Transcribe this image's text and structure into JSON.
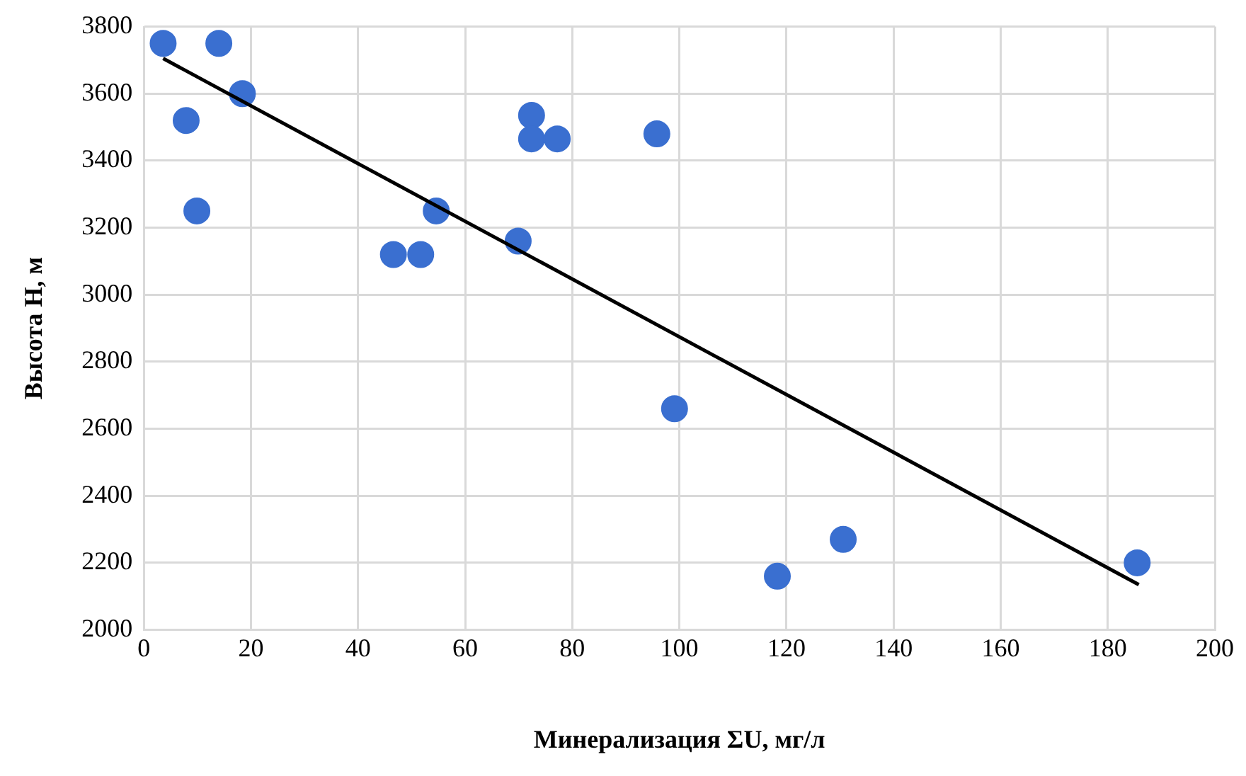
{
  "chart_data": {
    "type": "scatter",
    "xlabel": "Минерализация ΣU, мг/л",
    "ylabel": "Высота Н, м",
    "xlim": [
      0,
      200
    ],
    "xticks": [
      0,
      20,
      40,
      60,
      80,
      100,
      120,
      140,
      160,
      180,
      200
    ],
    "ylim": [
      2000,
      3800
    ],
    "yticks": [
      2000,
      2200,
      2400,
      2600,
      2800,
      3000,
      3200,
      3400,
      3600,
      3800
    ],
    "grid": true,
    "series": [
      {
        "color": "#3a6fd0",
        "marker": "circle",
        "x": [
          3.6,
          14,
          18.4,
          7.9,
          9.9,
          54.6,
          46.6,
          51.7,
          69.9,
          72.4,
          72.4,
          77.2,
          95.8,
          99.1,
          118.3,
          130.6,
          185.5
        ],
        "values": [
          3750,
          3750,
          3600,
          3520,
          3250,
          3250,
          3120,
          3120,
          3160,
          3535,
          3465,
          3465,
          3480,
          2660,
          2160,
          2270,
          2200
        ]
      },
      {
        "type": "line",
        "color": "#000000",
        "marker": "none",
        "x": [
          3.6,
          185.8
        ],
        "values": [
          3705,
          2135
        ]
      }
    ]
  }
}
